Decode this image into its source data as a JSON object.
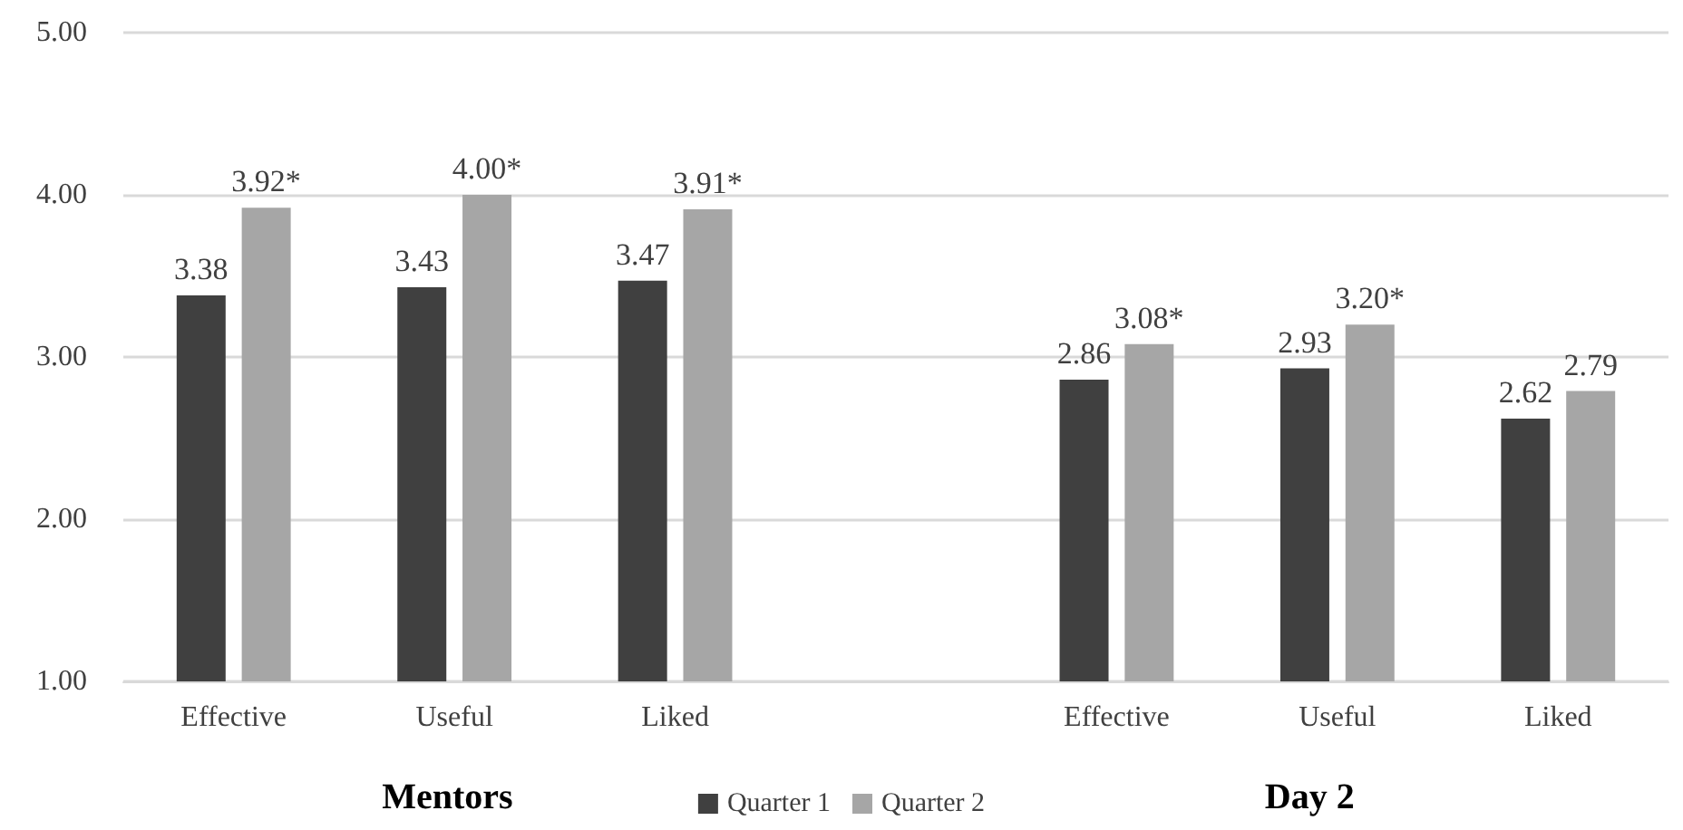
{
  "chart_data": {
    "type": "bar",
    "categories": [
      "Effective",
      "Useful",
      "Liked",
      null,
      "Effective",
      "Useful",
      "Liked"
    ],
    "series": [
      {
        "name": "Quarter 1",
        "color": "#404040",
        "values": [
          3.38,
          3.43,
          3.47,
          null,
          2.86,
          2.93,
          2.62
        ],
        "value_labels": [
          "3.38",
          "3.43",
          "3.47",
          null,
          "2.86",
          "2.93",
          "2.62"
        ]
      },
      {
        "name": "Quarter 2",
        "color": "#a6a6a6",
        "values": [
          3.92,
          4.0,
          3.91,
          null,
          3.08,
          3.2,
          2.79
        ],
        "value_labels": [
          "3.92*",
          "4.00*",
          "3.91*",
          null,
          "3.08*",
          "3.20*",
          "2.79"
        ]
      }
    ],
    "ylim": [
      1,
      5
    ],
    "yticks": [
      {
        "value": 1,
        "label": "1.00"
      },
      {
        "value": 2,
        "label": "2.00"
      },
      {
        "value": 3,
        "label": "3.00"
      },
      {
        "value": 4,
        "label": "4.00"
      },
      {
        "value": 5,
        "label": "5.00"
      }
    ],
    "grid": "y",
    "legend": "bottom",
    "annotations": [
      "Mentors",
      "Day 2"
    ]
  }
}
